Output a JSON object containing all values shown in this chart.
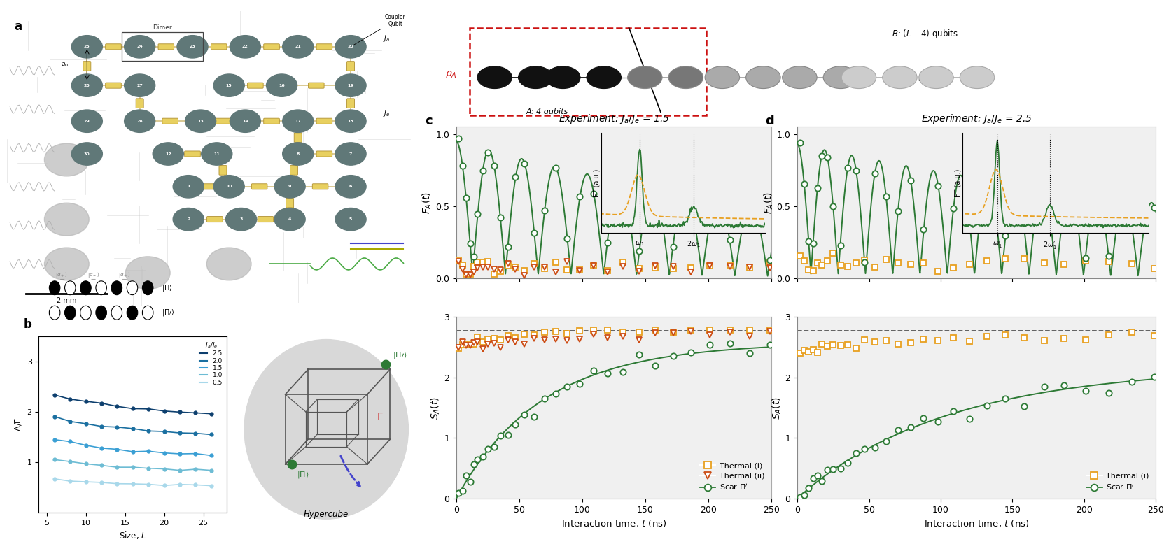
{
  "panel_c_title": "Experiment: $J_a/J_e$ = 1.5",
  "panel_d_title": "Experiment: $J_a/J_e$ = 2.5",
  "xlabel": "Interaction time, $t$ (ns)",
  "ylabel_F": "$F_A(t)$",
  "ylabel_S": "$S_A(t)$",
  "panel_b_xlabel": "Size, $L$",
  "panel_b_ylabel": "$\\Delta/\\Gamma$",
  "panel_b_colors": [
    "#a8d8ea",
    "#6dbcd4",
    "#3a9fd4",
    "#1a6fa0",
    "#0d3f6e"
  ],
  "thermal_color": "#e8a020",
  "scar_color": "#2d7a35",
  "thermal2_color": "#cc4c14",
  "plot_bg": "#f0f0f0",
  "dashed_line_val": 2.77,
  "chip_bg": "#dcdcdc",
  "qubit_color": "#607878",
  "coupler_color": "#d4c070"
}
